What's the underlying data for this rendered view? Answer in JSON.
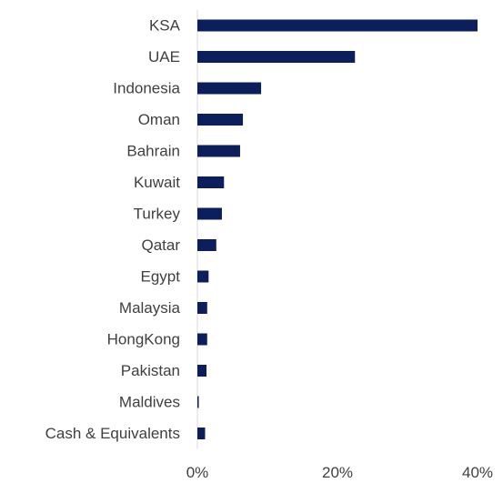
{
  "chart_data": {
    "type": "bar",
    "orientation": "horizontal",
    "categories": [
      "KSA",
      "UAE",
      "Indonesia",
      "Oman",
      "Bahrain",
      "Kuwait",
      "Turkey",
      "Qatar",
      "Egypt",
      "Malaysia",
      "HongKong",
      "Pakistan",
      "Maldives",
      "Cash & Equivalents"
    ],
    "values": [
      40.0,
      22.5,
      9.1,
      6.5,
      6.1,
      3.8,
      3.5,
      2.7,
      1.6,
      1.4,
      1.4,
      1.3,
      0.2,
      1.1
    ],
    "x_ticks": [
      0,
      20,
      40
    ],
    "x_tick_labels": [
      "0%",
      "20%",
      "40%"
    ],
    "xlim": [
      0,
      40
    ],
    "bar_color": "#0c1f5c",
    "title": "",
    "xlabel": "",
    "ylabel": "",
    "grid": false,
    "legend": "none"
  }
}
